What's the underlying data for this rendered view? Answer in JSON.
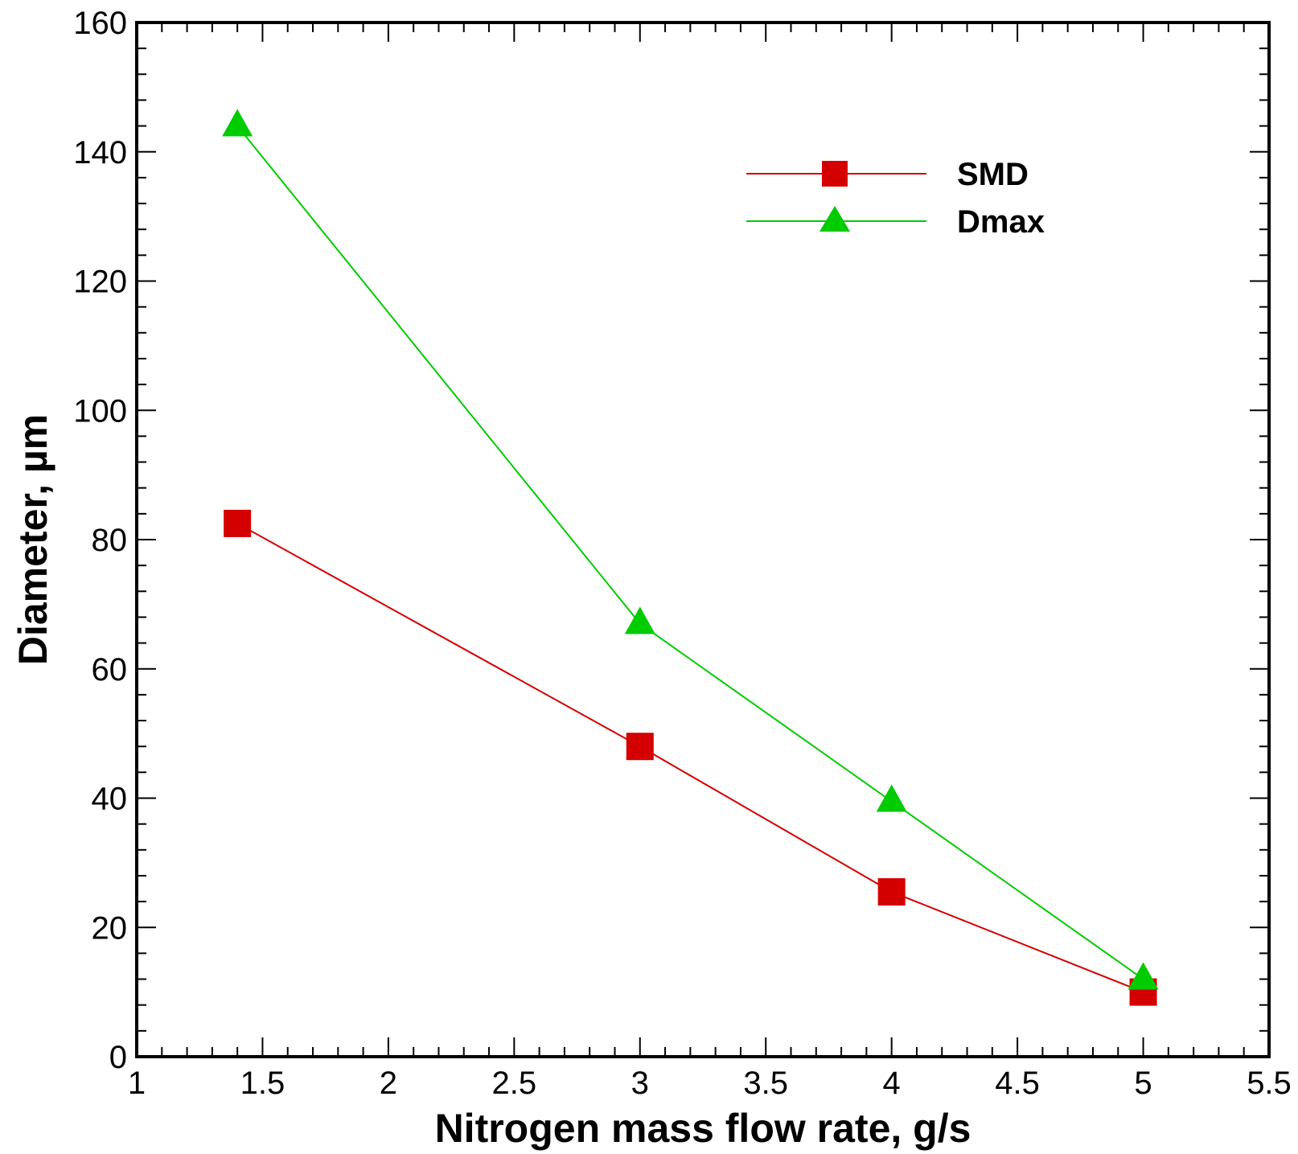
{
  "chart_data": {
    "type": "line",
    "title": "",
    "xlabel": "Nitrogen mass flow rate, g/s",
    "ylabel": "Diameter, µm",
    "xlim": [
      1,
      5.5
    ],
    "ylim": [
      0,
      160
    ],
    "x_ticks": [
      1,
      1.5,
      2,
      2.5,
      3,
      3.5,
      4,
      4.5,
      5,
      5.5
    ],
    "x_tick_labels": [
      "1",
      "1.5",
      "2",
      "2.5",
      "3",
      "3.5",
      "4",
      "4.5",
      "5",
      "5.5"
    ],
    "y_ticks": [
      0,
      20,
      40,
      60,
      80,
      100,
      120,
      140,
      160
    ],
    "y_tick_labels": [
      "0",
      "20",
      "40",
      "60",
      "80",
      "100",
      "120",
      "140",
      "160"
    ],
    "grid": false,
    "legend_position": "top-right",
    "series": [
      {
        "name": "SMD",
        "marker": "square",
        "color": "#d40000",
        "x": [
          1.4,
          3,
          4,
          5
        ],
        "y": [
          82.5,
          48,
          25.5,
          10
        ]
      },
      {
        "name": "Dmax",
        "marker": "triangle",
        "color": "#00cc00",
        "x": [
          1.4,
          3,
          4,
          5
        ],
        "y": [
          144,
          67,
          39.5,
          12
        ]
      }
    ]
  }
}
